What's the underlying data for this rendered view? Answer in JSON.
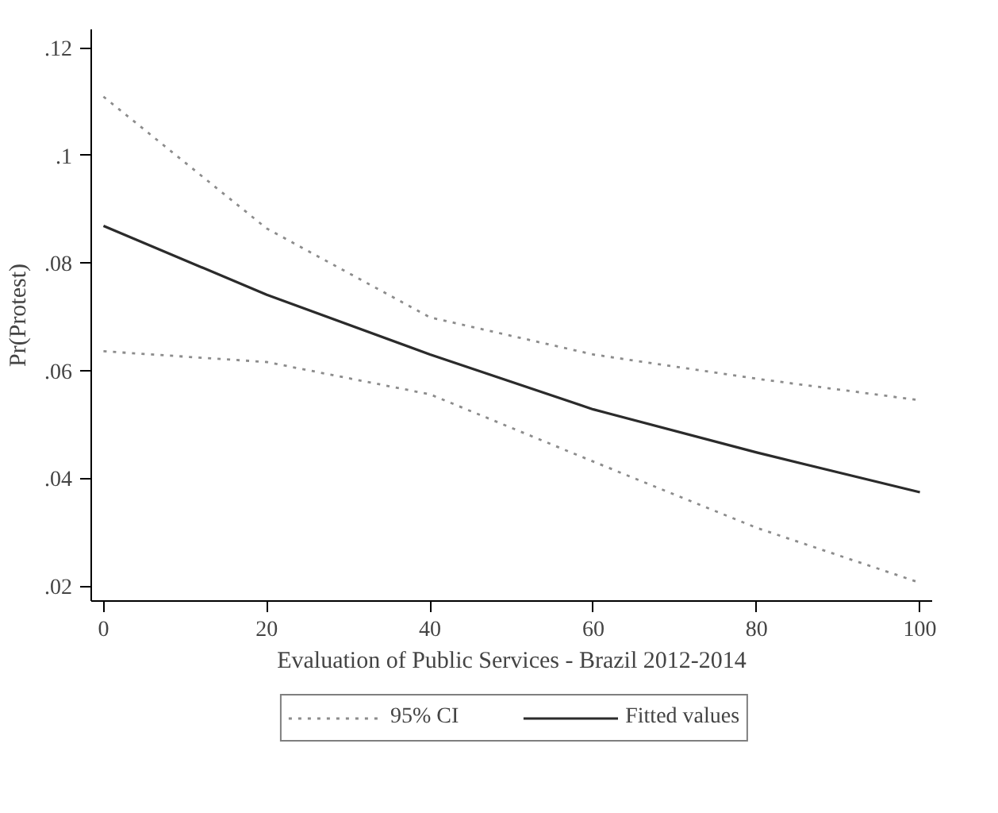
{
  "chart_data": {
    "type": "line",
    "xlabel": "Evaluation of Public Services - Brazil 2012-2014",
    "ylabel": "Pr(Protest)",
    "x": [
      0,
      20,
      40,
      60,
      80,
      100
    ],
    "series": [
      {
        "name": "95% CI",
        "color": "#8c8c8c",
        "line_style": "dotted",
        "values": [
          0.0636,
          0.0616,
          0.0556,
          0.0431,
          0.0308,
          0.0206
        ]
      },
      {
        "color": "#8c8c8c",
        "line_style": "dotted",
        "values": [
          0.1109,
          0.0864,
          0.0699,
          0.063,
          0.0585,
          0.0545
        ]
      },
      {
        "name": "Fitted values",
        "color": "#2b2b2b",
        "line_style": "solid",
        "values": [
          0.0869,
          0.0741,
          0.063,
          0.0528,
          0.0448,
          0.0374
        ]
      }
    ],
    "xlim": [
      -1.5,
      101.5
    ],
    "ylim": [
      0.0172,
      0.1234
    ],
    "xticks": [
      0,
      20,
      40,
      60,
      80,
      100
    ],
    "yticks": [
      {
        "value": 0.02,
        "label": ".02"
      },
      {
        "value": 0.04,
        "label": ".04"
      },
      {
        "value": 0.06,
        "label": ".06"
      },
      {
        "value": 0.08,
        "label": ".08"
      },
      {
        "value": 0.1,
        "label": ".1"
      },
      {
        "value": 0.12,
        "label": ".12"
      }
    ],
    "grid": false,
    "legend": "bottom",
    "marker": "none"
  }
}
